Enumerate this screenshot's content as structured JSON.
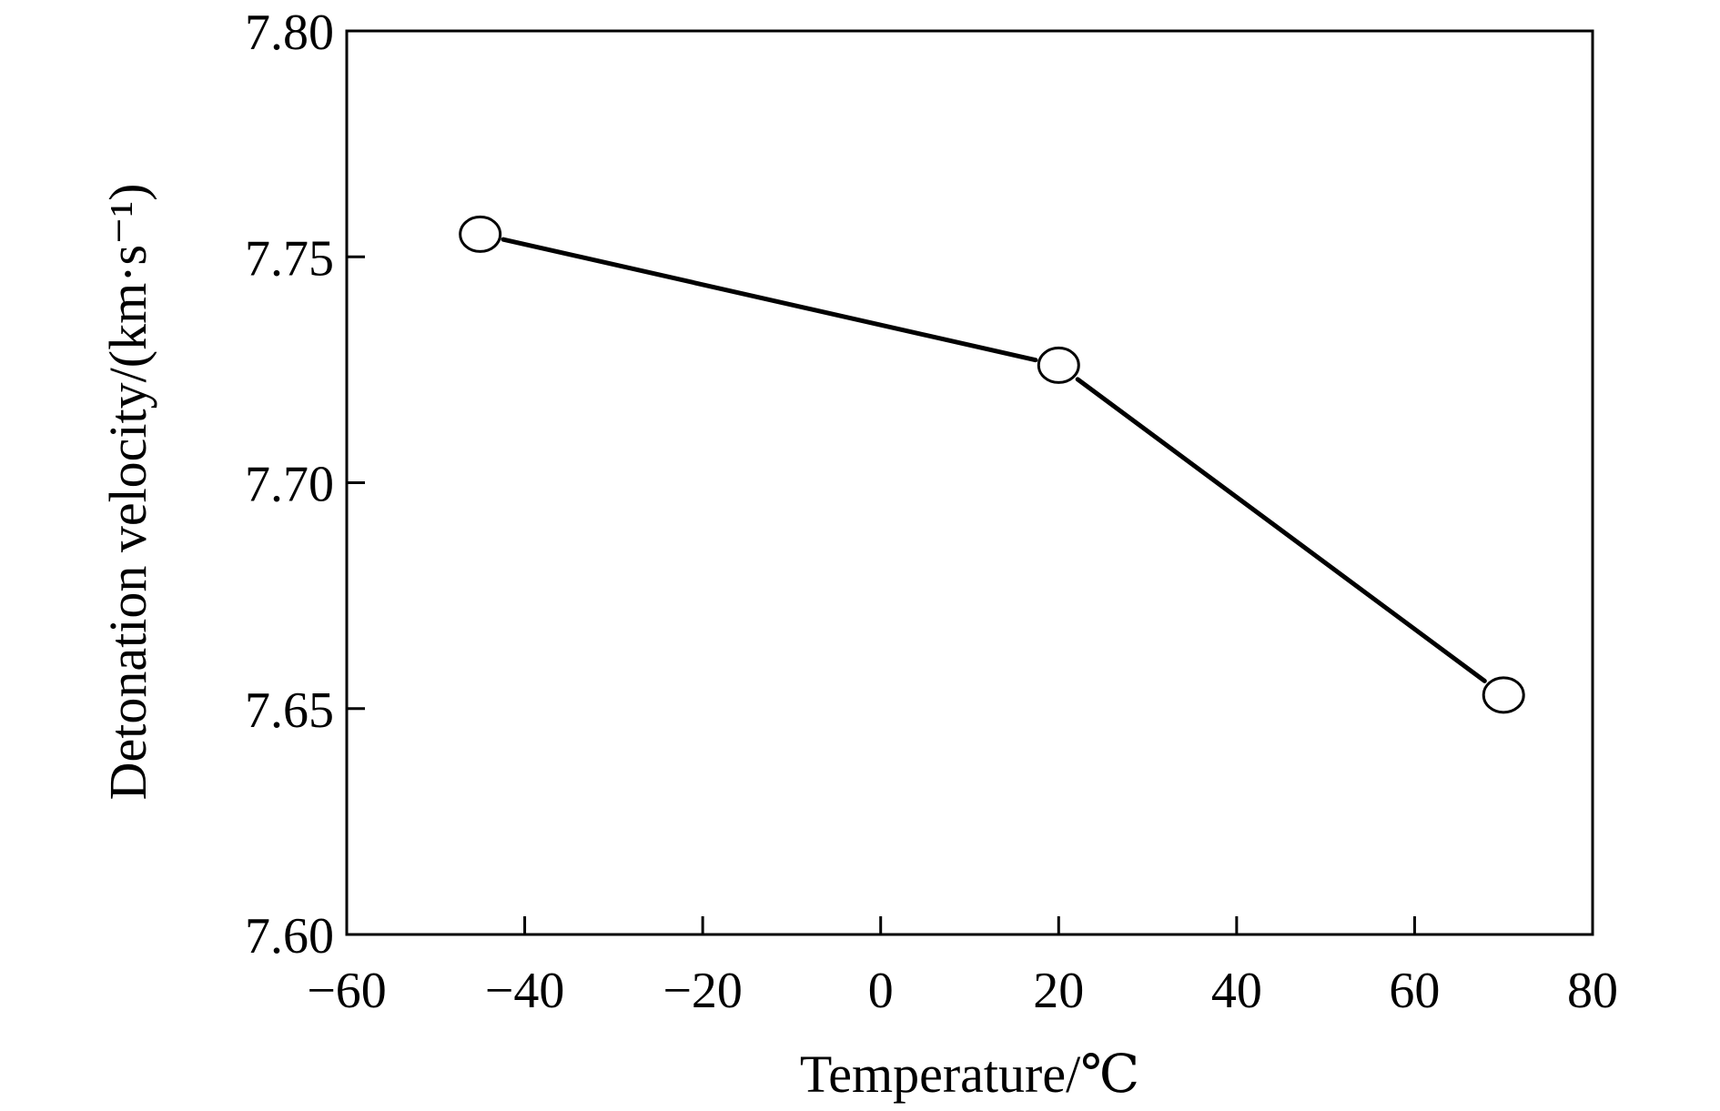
{
  "chart_data": {
    "type": "line",
    "title": "",
    "xlabel": "Temperature/℃",
    "ylabel": "Detonation velocity/(km·s⁻¹)",
    "xlim": [
      -60,
      80
    ],
    "ylim": [
      7.6,
      7.8
    ],
    "x_ticks": [
      -60,
      -40,
      -20,
      0,
      20,
      40,
      60,
      80
    ],
    "x_tick_labels": [
      "−60",
      "−40",
      "−20",
      "0",
      "20",
      "40",
      "60",
      "80"
    ],
    "y_ticks": [
      7.6,
      7.65,
      7.7,
      7.75,
      7.8
    ],
    "y_tick_labels": [
      "7.60",
      "7.65",
      "7.70",
      "7.75",
      "7.80"
    ],
    "grid": false,
    "legend": "none",
    "series": [
      {
        "marker": "open-circle",
        "color": "#000000",
        "x": [
          -45,
          20,
          70
        ],
        "y": [
          7.755,
          7.726,
          7.653
        ]
      }
    ]
  }
}
